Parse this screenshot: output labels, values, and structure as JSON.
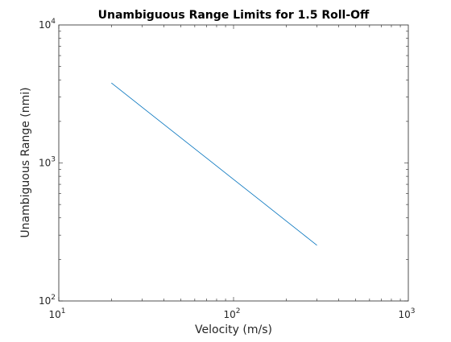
{
  "chart_data": {
    "type": "line",
    "title": "Unambiguous Range Limits for 1.5 Roll-Off",
    "xlabel": "Velocity (m/s)",
    "ylabel": "Unambiguous Range (nmi)",
    "xscale": "log",
    "yscale": "log",
    "xlim": [
      10,
      1000
    ],
    "ylim": [
      100,
      10000
    ],
    "grid": false,
    "box": true,
    "x_ticks": [
      {
        "base": "10",
        "exp": "1",
        "value": 10
      },
      {
        "base": "10",
        "exp": "2",
        "value": 100
      },
      {
        "base": "10",
        "exp": "3",
        "value": 1000
      }
    ],
    "y_ticks": [
      {
        "base": "10",
        "exp": "2",
        "value": 100
      },
      {
        "base": "10",
        "exp": "3",
        "value": 1000
      },
      {
        "base": "10",
        "exp": "4",
        "value": 10000
      }
    ],
    "series": [
      {
        "color": "#0072BD",
        "x": [
          20,
          30,
          50,
          70,
          100,
          150,
          200,
          250,
          300
        ],
        "y": [
          3800,
          2533,
          1520,
          1086,
          760,
          507,
          380,
          304,
          253
        ]
      }
    ]
  }
}
